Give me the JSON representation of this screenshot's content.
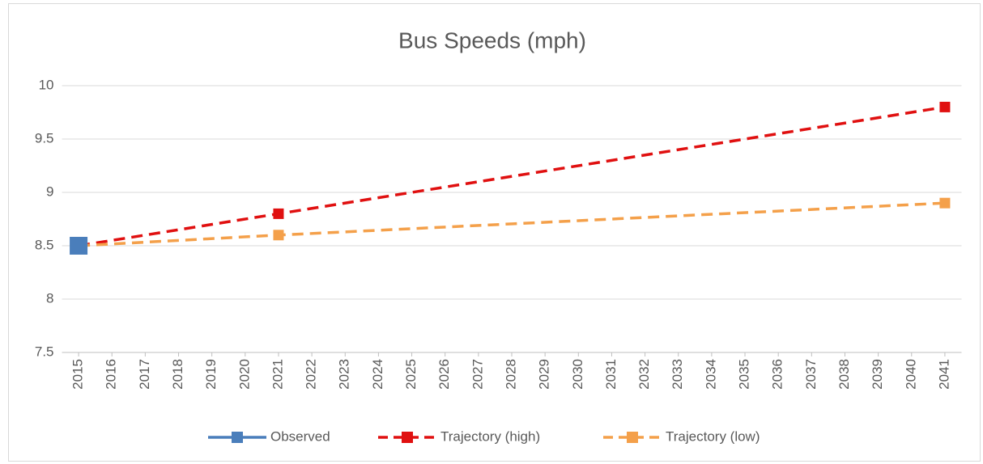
{
  "chart_data": {
    "type": "line",
    "title": "Bus Speeds (mph)",
    "xlim": [
      2014.5,
      2041.5
    ],
    "xticks": [
      2015,
      2016,
      2017,
      2018,
      2019,
      2020,
      2021,
      2022,
      2023,
      2024,
      2025,
      2026,
      2027,
      2028,
      2029,
      2030,
      2031,
      2032,
      2033,
      2034,
      2035,
      2036,
      2037,
      2038,
      2039,
      2040,
      2041
    ],
    "ylim": [
      7.5,
      10
    ],
    "yticks": [
      7.5,
      8,
      8.5,
      9,
      9.5,
      10
    ],
    "grid": true,
    "legend": "bottom",
    "series": [
      {
        "name": "Observed",
        "color": "#4a7ebb",
        "x": [
          2015
        ],
        "values": [
          8.5
        ]
      },
      {
        "name": "Trajectory (high)",
        "color": "#e01010",
        "dashed": true,
        "x": [
          2015,
          2021,
          2041
        ],
        "values": [
          8.5,
          8.8,
          9.8
        ]
      },
      {
        "name": "Trajectory (low)",
        "color": "#f4a04a",
        "dashed": true,
        "x": [
          2015,
          2021,
          2041
        ],
        "values": [
          8.5,
          8.6,
          8.9
        ]
      }
    ]
  }
}
